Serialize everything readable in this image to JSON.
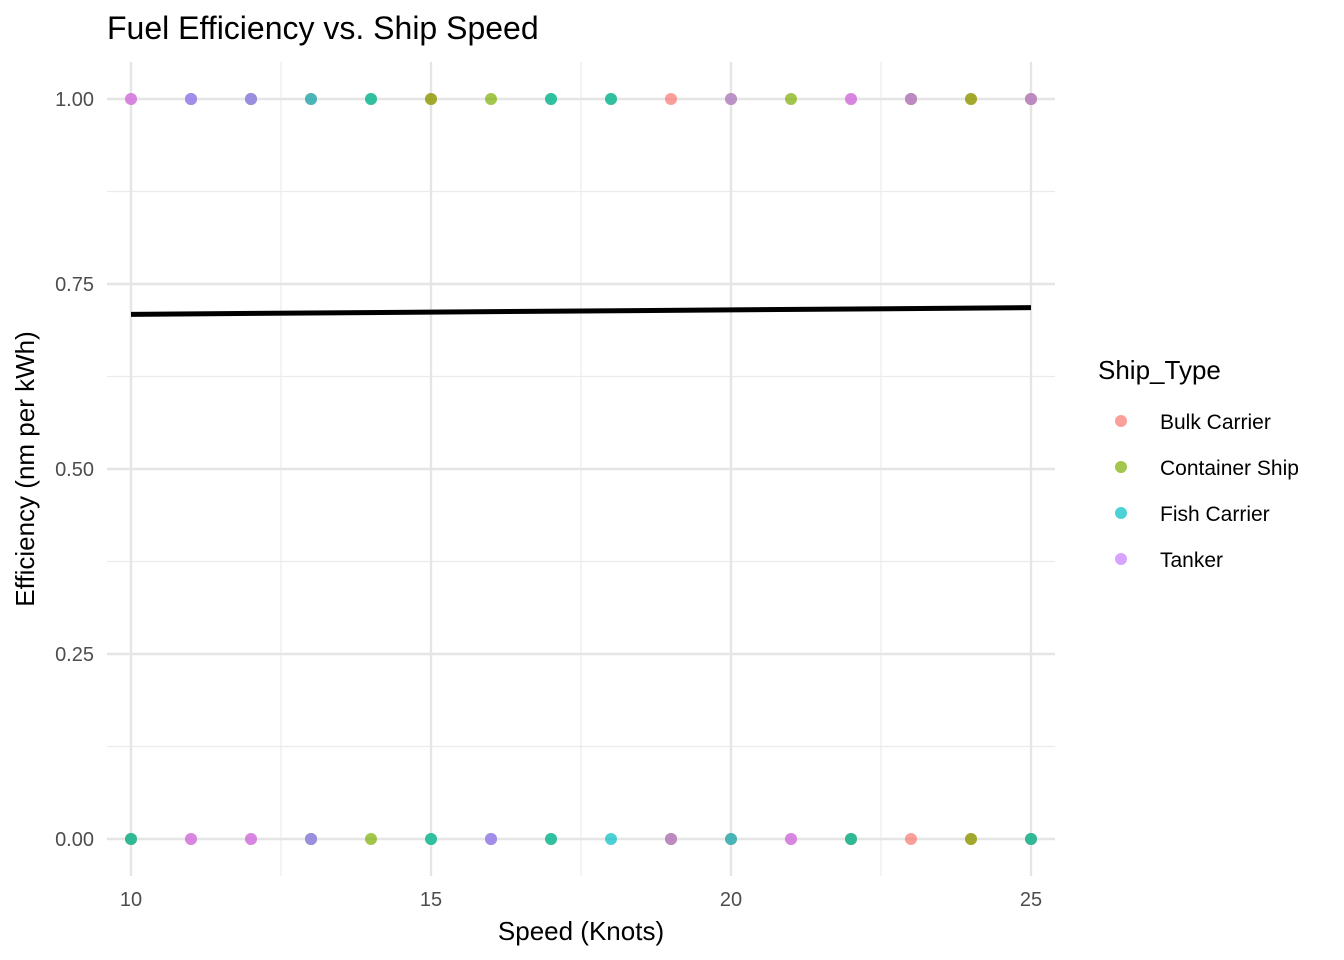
{
  "chart_data": {
    "type": "scatter",
    "title": "Fuel Efficiency vs. Ship Speed",
    "xlabel": "Speed (Knots)",
    "ylabel": "Efficiency (nm per kWh)",
    "xlim": [
      9.6,
      25.4
    ],
    "ylim": [
      -0.05,
      1.05
    ],
    "x_ticks": [
      10,
      15,
      20,
      25
    ],
    "x_tick_labels": [
      "10",
      "15",
      "20",
      "25"
    ],
    "y_ticks": [
      0,
      0.25,
      0.5,
      0.75,
      1
    ],
    "y_tick_labels": [
      "0.00",
      "0.25",
      "0.50",
      "0.75",
      "1.00"
    ],
    "grid": true,
    "legend": {
      "title": "Ship_Type",
      "position": "right",
      "entries": [
        {
          "name": "Bulk Carrier",
          "color": "#F8766D"
        },
        {
          "name": "Container Ship",
          "color": "#7CAE00"
        },
        {
          "name": "Fish Carrier",
          "color": "#00BFC4"
        },
        {
          "name": "Tanker",
          "color": "#C77CFF"
        }
      ]
    },
    "series": [
      {
        "name": "Bulk Carrier",
        "color": "#F8766D",
        "points": [
          [
            10,
            1
          ],
          [
            10,
            0
          ],
          [
            11,
            1
          ],
          [
            11,
            0
          ],
          [
            12,
            1
          ],
          [
            12,
            0
          ],
          [
            13,
            1
          ],
          [
            13,
            0
          ],
          [
            15,
            1
          ],
          [
            16,
            0
          ],
          [
            19,
            1
          ],
          [
            19,
            0
          ],
          [
            20,
            0
          ],
          [
            21,
            0
          ],
          [
            22,
            1
          ],
          [
            22,
            0
          ],
          [
            23,
            1
          ],
          [
            23,
            0
          ],
          [
            24,
            1
          ],
          [
            24,
            0
          ],
          [
            25,
            1
          ],
          [
            25,
            0
          ]
        ]
      },
      {
        "name": "Container Ship",
        "color": "#7CAE00",
        "points": [
          [
            10,
            0
          ],
          [
            12,
            1
          ],
          [
            13,
            0
          ],
          [
            14,
            1
          ],
          [
            14,
            0
          ],
          [
            15,
            1
          ],
          [
            15,
            0
          ],
          [
            16,
            1
          ],
          [
            17,
            1
          ],
          [
            17,
            0
          ],
          [
            18,
            1
          ],
          [
            19,
            0
          ],
          [
            20,
            1
          ],
          [
            21,
            1
          ],
          [
            22,
            0
          ],
          [
            23,
            1
          ],
          [
            24,
            1
          ],
          [
            24,
            0
          ],
          [
            25,
            1
          ],
          [
            25,
            0
          ]
        ]
      },
      {
        "name": "Fish Carrier",
        "color": "#00BFC4",
        "points": [
          [
            10,
            0
          ],
          [
            11,
            1
          ],
          [
            12,
            1
          ],
          [
            13,
            1
          ],
          [
            13,
            0
          ],
          [
            14,
            1
          ],
          [
            15,
            0
          ],
          [
            16,
            0
          ],
          [
            17,
            1
          ],
          [
            17,
            0
          ],
          [
            18,
            1
          ],
          [
            18,
            0
          ],
          [
            20,
            0
          ],
          [
            22,
            0
          ],
          [
            25,
            0
          ]
        ]
      },
      {
        "name": "Tanker",
        "color": "#C77CFF",
        "points": [
          [
            10,
            1
          ],
          [
            11,
            1
          ],
          [
            11,
            0
          ],
          [
            12,
            1
          ],
          [
            12,
            0
          ],
          [
            13,
            0
          ],
          [
            16,
            0
          ],
          [
            19,
            0
          ],
          [
            20,
            1
          ],
          [
            21,
            0
          ],
          [
            22,
            1
          ],
          [
            23,
            1
          ],
          [
            25,
            1
          ]
        ]
      }
    ],
    "trend_line": {
      "color": "#000000",
      "points": [
        [
          10,
          0.709
        ],
        [
          25,
          0.718
        ]
      ]
    }
  }
}
